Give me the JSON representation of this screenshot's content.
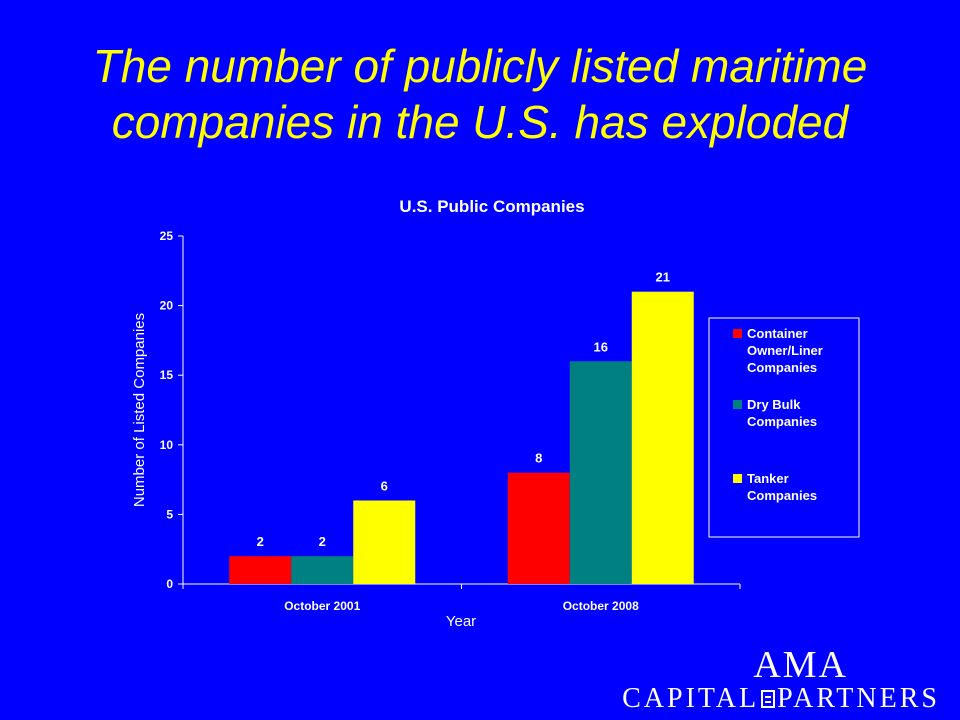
{
  "slide": {
    "title_line1": "The number of publicly listed maritime",
    "title_line2": "companies in the U.S. has exploded"
  },
  "colors": {
    "background": "#0000ff",
    "title": "#ffff00",
    "text": "#ffffff",
    "container": "#ff0000",
    "dry_bulk": "#008080",
    "tanker": "#ffff00"
  },
  "chart_data": {
    "type": "bar",
    "title": "U.S. Public Companies",
    "xlabel": "Year",
    "ylabel": "Number of Listed Companies",
    "categories": [
      "October 2001",
      "October 2008"
    ],
    "ylim": [
      0,
      25
    ],
    "yticks": [
      0,
      5,
      10,
      15,
      20,
      25
    ],
    "grid": false,
    "legend_position": "right",
    "series": [
      {
        "name": "Container Owner/Liner Companies",
        "legend_lines": [
          "Container",
          "Owner/Liner",
          "Companies"
        ],
        "color": "#ff0000",
        "values": [
          2,
          8
        ]
      },
      {
        "name": "Dry Bulk Companies",
        "legend_lines": [
          "Dry Bulk",
          "Companies"
        ],
        "color": "#008080",
        "values": [
          2,
          16
        ]
      },
      {
        "name": "Tanker Companies",
        "legend_lines": [
          "Tanker",
          "Companies"
        ],
        "color": "#ffff00",
        "values": [
          6,
          21
        ]
      }
    ]
  },
  "logo": {
    "name_top": "AMA",
    "name_left": "CAPITAL",
    "name_right": "PARTNERS"
  }
}
